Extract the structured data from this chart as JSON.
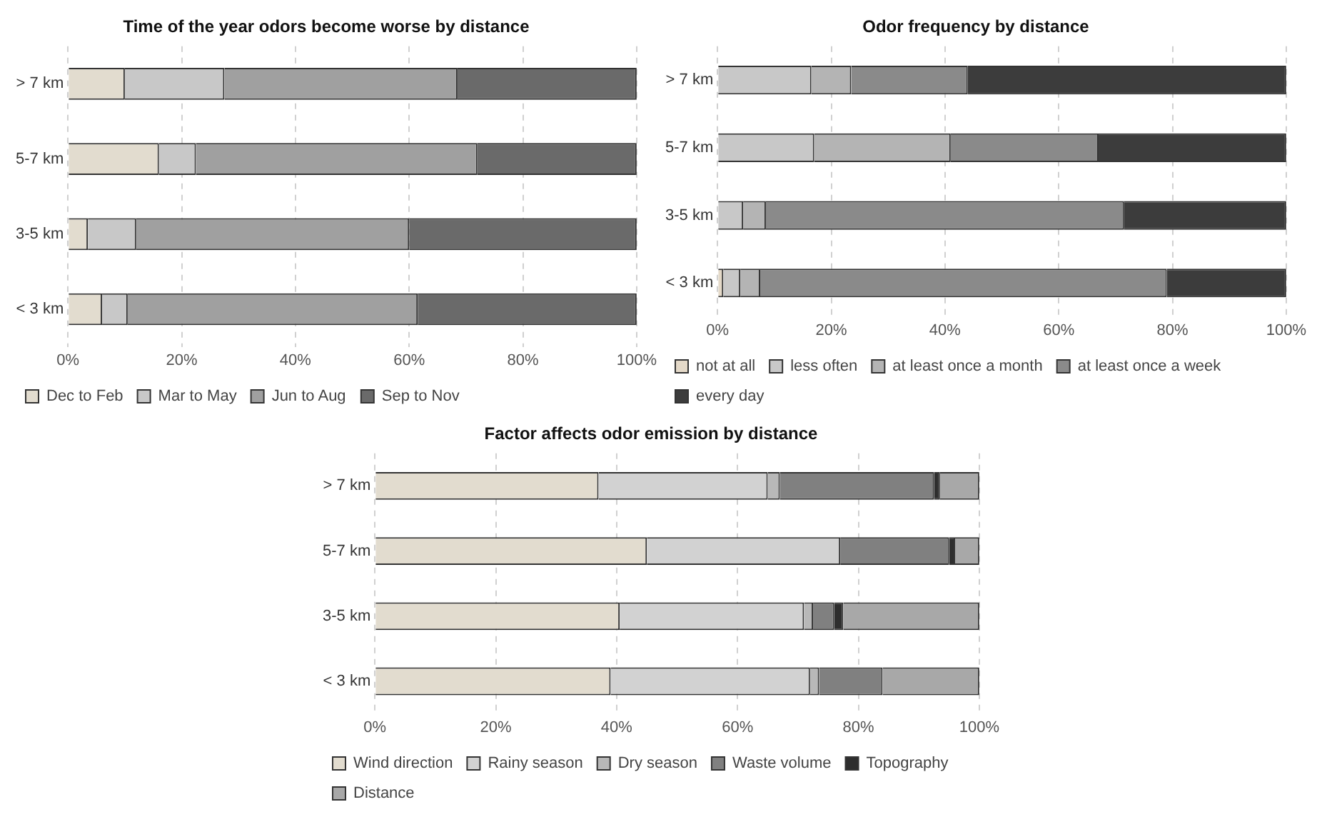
{
  "chart_data": [
    {
      "type": "bar",
      "orientation": "horizontal",
      "stacked": true,
      "title": "Time of the year odors become worse by distance",
      "categories": [
        "> 7 km",
        "5-7 km",
        "3-5 km",
        "< 3 km"
      ],
      "xlim": [
        0,
        100
      ],
      "xticks": [
        {
          "value": 0,
          "label": "0%"
        },
        {
          "value": 20,
          "label": "20%"
        },
        {
          "value": 40,
          "label": "40%"
        },
        {
          "value": 60,
          "label": "60%"
        },
        {
          "value": 80,
          "label": "80%"
        },
        {
          "value": 100,
          "label": "100%"
        }
      ],
      "grid": "x",
      "legend": "bottom",
      "series": [
        {
          "name": "Dec to Feb",
          "color": "#e2dccf",
          "values": [
            10,
            16,
            3.5,
            6
          ]
        },
        {
          "name": "Mar to May",
          "color": "#c8c8c8",
          "values": [
            17.5,
            6.5,
            8.5,
            4.5
          ]
        },
        {
          "name": "Jun to Aug",
          "color": "#a0a0a0",
          "values": [
            41,
            49.5,
            48,
            51
          ]
        },
        {
          "name": "Sep to Nov",
          "color": "#6a6a6a",
          "values": [
            31.5,
            28,
            40,
            38.5
          ]
        }
      ]
    },
    {
      "type": "bar",
      "orientation": "horizontal",
      "stacked": true,
      "title": "Odor frequency by distance",
      "categories": [
        "> 7 km",
        "5-7 km",
        "3-5 km",
        "< 3 km"
      ],
      "xlim": [
        0,
        100
      ],
      "xticks": [
        {
          "value": 0,
          "label": "0%"
        },
        {
          "value": 20,
          "label": "20%"
        },
        {
          "value": 40,
          "label": "40%"
        },
        {
          "value": 60,
          "label": "60%"
        },
        {
          "value": 80,
          "label": "80%"
        },
        {
          "value": 100,
          "label": "100%"
        }
      ],
      "grid": "x",
      "legend": "bottom",
      "series": [
        {
          "name": "not at all",
          "color": "#e4d9c8",
          "values": [
            0,
            0,
            0,
            1
          ]
        },
        {
          "name": "less often",
          "color": "#c8c8c8",
          "values": [
            16.5,
            17,
            4.5,
            3
          ]
        },
        {
          "name": "at least once a month",
          "color": "#b4b4b4",
          "values": [
            7,
            24,
            4,
            3.5
          ]
        },
        {
          "name": "at least once a week",
          "color": "#8a8a8a",
          "values": [
            20.5,
            26,
            63,
            71.5
          ]
        },
        {
          "name": "every day",
          "color": "#3c3c3c",
          "values": [
            56,
            33,
            28.5,
            21
          ]
        }
      ]
    },
    {
      "type": "bar",
      "orientation": "horizontal",
      "stacked": true,
      "title": "Factor affects odor emission by distance",
      "categories": [
        "> 7 km",
        "5-7 km",
        "3-5 km",
        "< 3 km"
      ],
      "xlim": [
        0,
        100
      ],
      "xticks": [
        {
          "value": 0,
          "label": "0%"
        },
        {
          "value": 20,
          "label": "20%"
        },
        {
          "value": 40,
          "label": "40%"
        },
        {
          "value": 60,
          "label": "60%"
        },
        {
          "value": 80,
          "label": "80%"
        },
        {
          "value": 100,
          "label": "100%"
        }
      ],
      "grid": "x",
      "legend": "bottom",
      "series": [
        {
          "name": "Wind direction",
          "color": "#e2dccf",
          "values": [
            37,
            45,
            40.5,
            39
          ]
        },
        {
          "name": "Rainy season",
          "color": "#d2d2d2",
          "values": [
            28,
            32,
            30.5,
            33
          ]
        },
        {
          "name": "Dry season",
          "color": "#b8b8b8",
          "values": [
            2,
            0,
            1.5,
            1.5
          ]
        },
        {
          "name": "Waste volume",
          "color": "#808080",
          "values": [
            25.5,
            18,
            3.5,
            10.5
          ]
        },
        {
          "name": "Topography",
          "color": "#2e2e2e",
          "values": [
            1,
            1,
            1.5,
            0
          ]
        },
        {
          "name": "Distance",
          "color": "#a8a8a8",
          "values": [
            6.5,
            4,
            22.5,
            16
          ]
        }
      ]
    }
  ]
}
